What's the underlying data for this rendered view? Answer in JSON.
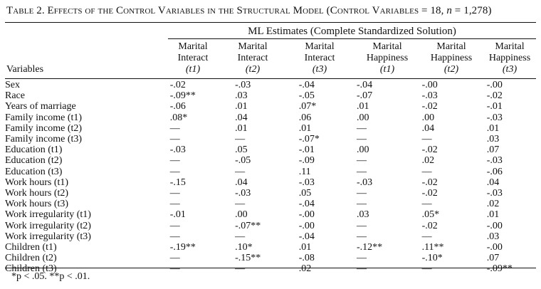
{
  "table": {
    "title_prefix": "Table 2. ",
    "title_main": "Effects of the Control Variables in the Structural Model (Control Variables = 18, ",
    "title_n": "n",
    "title_suffix": " = 1,278)",
    "spanner": "ML Estimates (Complete Standardized Solution)",
    "variables_header": "Variables",
    "columns": [
      {
        "line1": "Marital",
        "line2": "Interact",
        "line3": "(t1)"
      },
      {
        "line1": "Marital",
        "line2": "Interact",
        "line3": "(t2)"
      },
      {
        "line1": "Marital",
        "line2": "Interact",
        "line3": "(t3)"
      },
      {
        "line1": "Marital",
        "line2": "Happiness",
        "line3": "(t1)"
      },
      {
        "line1": "Marital",
        "line2": "Happiness",
        "line3": "(t2)"
      },
      {
        "line1": "Marital",
        "line2": "Happiness",
        "line3": "(t3)"
      }
    ],
    "rows": [
      {
        "label": "Sex",
        "values": [
          "-.02",
          "-.03",
          "-.04",
          "-.04",
          "-.00",
          "-.00"
        ]
      },
      {
        "label": "Race",
        "values": [
          "-.09**",
          ".03",
          "-.05",
          "-.07",
          "-.03",
          "-.02"
        ]
      },
      {
        "label": "Years of marriage",
        "values": [
          "-.06",
          ".01",
          ".07*",
          ".01",
          "-.02",
          "-.01"
        ]
      },
      {
        "label": "Family income (t1)",
        "values": [
          ".08*",
          ".04",
          ".06",
          ".00",
          ".00",
          "-.03"
        ]
      },
      {
        "label": "Family income (t2)",
        "values": [
          "—",
          ".01",
          ".01",
          "—",
          ".04",
          ".01"
        ]
      },
      {
        "label": "Family income (t3)",
        "values": [
          "—",
          "—",
          "-.07*",
          "—",
          "—",
          ".03"
        ]
      },
      {
        "label": "Education (t1)",
        "values": [
          "-.03",
          ".05",
          "-.01",
          ".00",
          "-.02",
          ".07"
        ]
      },
      {
        "label": "Education (t2)",
        "values": [
          "—",
          "-.05",
          "-.09",
          "—",
          ".02",
          "-.03"
        ]
      },
      {
        "label": "Education (t3)",
        "values": [
          "—",
          "—",
          ".11",
          "—",
          "—",
          "-.06"
        ]
      },
      {
        "label": "Work hours (t1)",
        "values": [
          "-.15",
          ".04",
          "-.03",
          "-.03",
          "-.02",
          ".04"
        ]
      },
      {
        "label": "Work hours (t2)",
        "values": [
          "—",
          "-.03",
          ".05",
          "—",
          "-.02",
          "-.03"
        ]
      },
      {
        "label": "Work hours (t3)",
        "values": [
          "—",
          "—",
          "-.04",
          "—",
          "—",
          ".02"
        ]
      },
      {
        "label": "Work irregularity (t1)",
        "values": [
          "-.01",
          ".00",
          "-.00",
          ".03",
          ".05*",
          ".01"
        ]
      },
      {
        "label": "Work irregularity (t2)",
        "values": [
          "—",
          "-.07**",
          "-.00",
          "—",
          "-.02",
          "-.00"
        ]
      },
      {
        "label": "Work irregularity (t3)",
        "values": [
          "—",
          "—",
          "-.04",
          "—",
          "—",
          ".03"
        ]
      },
      {
        "label": "Children (t1)",
        "values": [
          "-.19**",
          ".10*",
          ".01",
          "-.12**",
          ".11**",
          "-.00"
        ]
      },
      {
        "label": "Children (t2)",
        "values": [
          "—",
          "-.15**",
          "-.08",
          "—",
          "-.10*",
          ".07"
        ]
      },
      {
        "label": "Children (t3)",
        "values": [
          "—",
          "—",
          ".02",
          "—",
          "—",
          "-.09**"
        ]
      }
    ],
    "footnote": "*p < .05. **p < .01."
  }
}
